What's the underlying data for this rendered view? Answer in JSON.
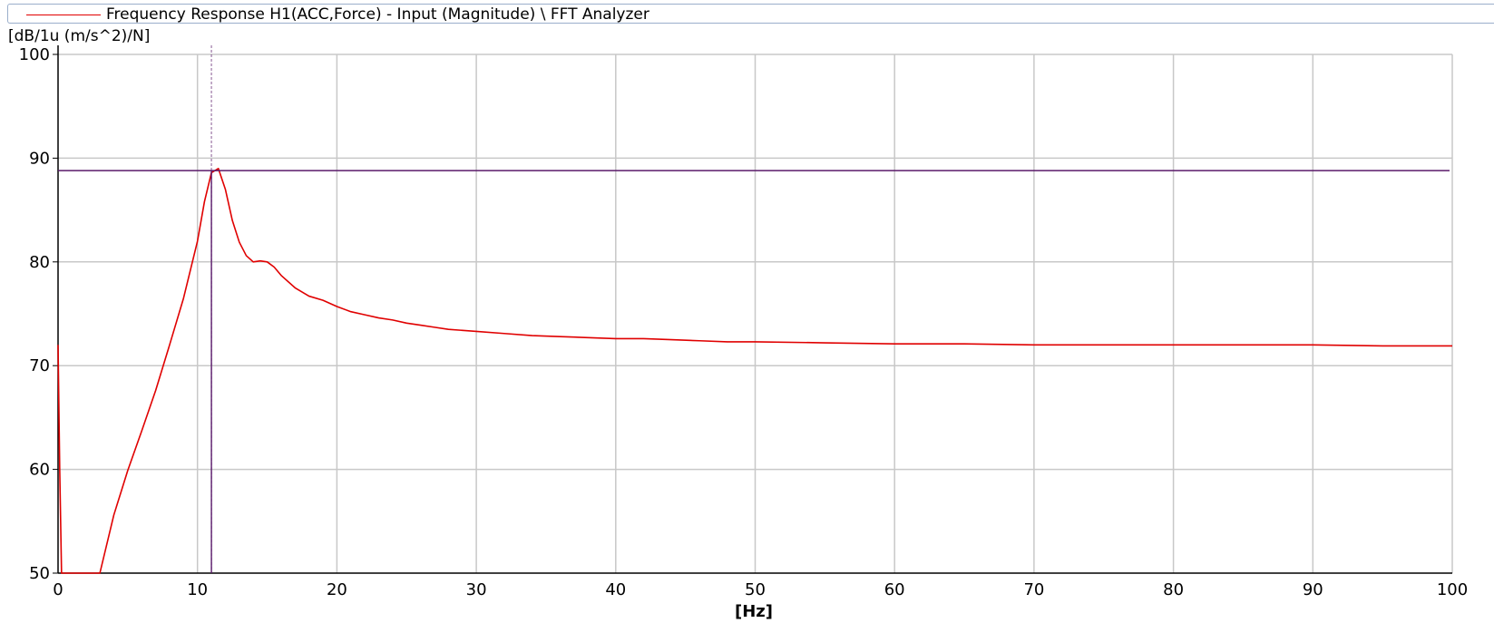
{
  "chart_data": {
    "type": "line",
    "title": "",
    "legend": [
      {
        "name": "Frequency Response H1(ACC,Force) - Input (Magnitude) \\ FFT Analyzer",
        "color": "#e00000"
      }
    ],
    "legend_placement": "top-left",
    "xlabel": "[Hz]",
    "ylabel": "[dB/1u (m/s^2)/N]",
    "xlim": [
      0,
      100
    ],
    "ylim": [
      50,
      100
    ],
    "xticks": [
      "0",
      "10",
      "20",
      "30",
      "40",
      "50",
      "60",
      "70",
      "80",
      "90",
      "100"
    ],
    "yticks": [
      "50",
      "60",
      "70",
      "80",
      "90",
      "100"
    ],
    "grid": true,
    "cursor": {
      "x": 11,
      "y": 88.8,
      "color": "#5a1a6a"
    },
    "series": [
      {
        "name": "Frequency Response H1(ACC,Force) - Input (Magnitude) \\ FFT Analyzer",
        "color": "#e00000",
        "x": [
          0.0,
          0.12,
          0.25,
          3.0,
          4.0,
          5.0,
          6.0,
          7.0,
          8.0,
          9.0,
          10.0,
          10.5,
          11.0,
          11.5,
          12.0,
          12.5,
          13.0,
          13.5,
          14.0,
          14.5,
          15.0,
          15.5,
          16.0,
          17.0,
          18.0,
          19.0,
          20.0,
          21.0,
          22.0,
          23.0,
          24.0,
          25.0,
          26.0,
          27.0,
          28.0,
          29.0,
          30.0,
          32.0,
          34.0,
          36.0,
          38.0,
          40.0,
          42.0,
          44.0,
          46.0,
          48.0,
          50.0,
          55.0,
          60.0,
          65.0,
          70.0,
          75.0,
          80.0,
          85.0,
          90.0,
          95.0,
          100.0
        ],
        "y": [
          72.0,
          60.0,
          50.0,
          50.0,
          55.6,
          59.9,
          63.7,
          67.6,
          72.0,
          76.5,
          82.0,
          85.8,
          88.6,
          89.0,
          87.0,
          84.0,
          81.9,
          80.6,
          80.0,
          80.1,
          80.0,
          79.5,
          78.7,
          77.5,
          76.7,
          76.3,
          75.7,
          75.2,
          74.9,
          74.6,
          74.4,
          74.1,
          73.9,
          73.7,
          73.5,
          73.4,
          73.3,
          73.1,
          72.9,
          72.8,
          72.7,
          72.6,
          72.6,
          72.5,
          72.4,
          72.3,
          72.3,
          72.2,
          72.1,
          72.1,
          72.0,
          72.0,
          72.0,
          72.0,
          72.0,
          71.9,
          71.9
        ]
      }
    ]
  }
}
